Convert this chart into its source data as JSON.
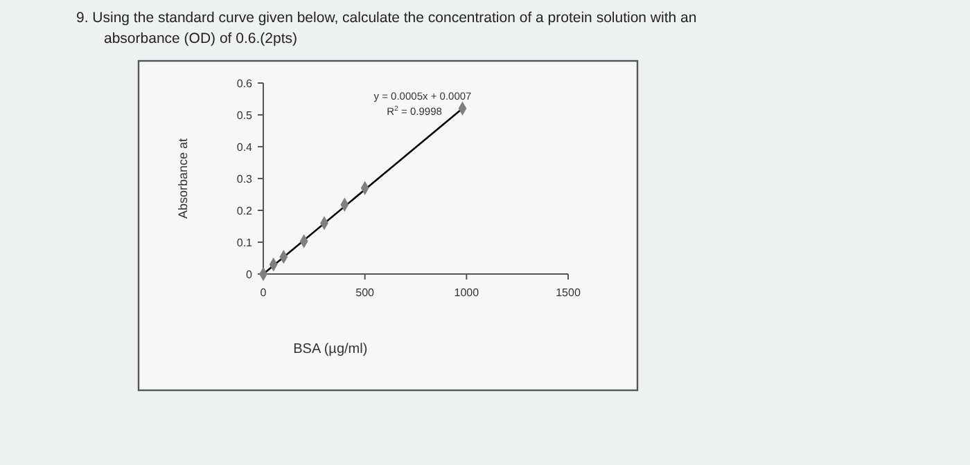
{
  "chart_data": {
    "type": "scatter",
    "title": "9.  Using the standard curve given below, calculate the concentration of a protein solution with an absorbance (OD) of 0.6.(2pts)",
    "xlabel": "BSA (µg/ml)",
    "ylabel": "Absorbance at",
    "xlim": [
      0,
      1500
    ],
    "xticks": [
      0,
      500,
      1000,
      1500
    ],
    "ylim": [
      0,
      0.6
    ],
    "yticks": [
      0,
      0.1,
      0.2,
      0.3,
      0.4,
      0.5,
      0.6
    ],
    "grid": false,
    "series": [
      {
        "color": "#7f7f7f",
        "marker": "diamond",
        "x": [
          0,
          50,
          100,
          200,
          300,
          400,
          500,
          980
        ],
        "values": [
          0,
          0.03,
          0.054,
          0.103,
          0.16,
          0.218,
          0.27,
          0.52
        ]
      },
      {
        "type": "line",
        "color": "#000000",
        "line_style": "solid",
        "x": [
          0,
          980
        ],
        "values": [
          0,
          0.52
        ]
      }
    ],
    "annotations": [
      "y = 0.0005x + 0.0007",
      "R$^{2}$ = 0.9998"
    ]
  }
}
